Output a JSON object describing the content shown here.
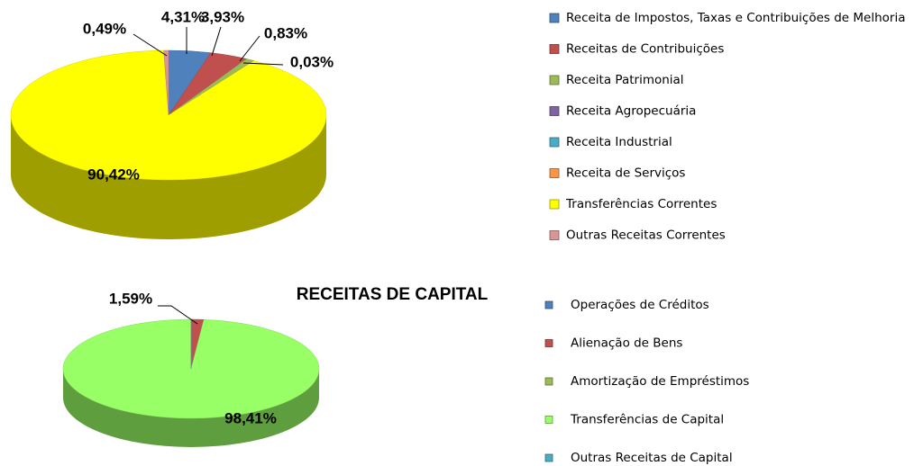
{
  "chart_data": [
    {
      "type": "pie3d",
      "categories": [
        "Receita de Impostos, Taxas e Contribuições de Melhoria",
        "Receitas de Contribuições",
        "Receita Patrimonial",
        "Receita Agropecuária",
        "Receita  Industrial",
        "Receita de Serviços",
        "Transferências Correntes",
        "Outras Receitas Correntes"
      ],
      "values": [
        4.31,
        3.93,
        0.83,
        0.03,
        0,
        0,
        90.42,
        0.49
      ],
      "value_labels": [
        "4,31%",
        "3,93%",
        "0,83%",
        "0,03%",
        null,
        null,
        "90,42%",
        "0,49%"
      ],
      "colors": [
        "#4f81bd",
        "#c0504d",
        "#9bbb59",
        "#8064a2",
        "#4bacc6",
        "#f79646",
        "#ffff00",
        "#d99694"
      ],
      "legend": "right"
    },
    {
      "type": "pie3d",
      "title": "RECEITAS DE CAPITAL",
      "categories": [
        "Operações de Créditos",
        "Alienação de Bens",
        "Amortização de Empréstimos",
        "Transferências de Capital",
        "Outras Receitas de Capital"
      ],
      "values": [
        0,
        1.59,
        0,
        98.41,
        0
      ],
      "value_labels": [
        null,
        "1,59%",
        null,
        "98,41%",
        null
      ],
      "colors": [
        "#4f81bd",
        "#c0504d",
        "#9bbb59",
        "#99ff66",
        "#4bacc6"
      ],
      "legend": "right"
    }
  ]
}
